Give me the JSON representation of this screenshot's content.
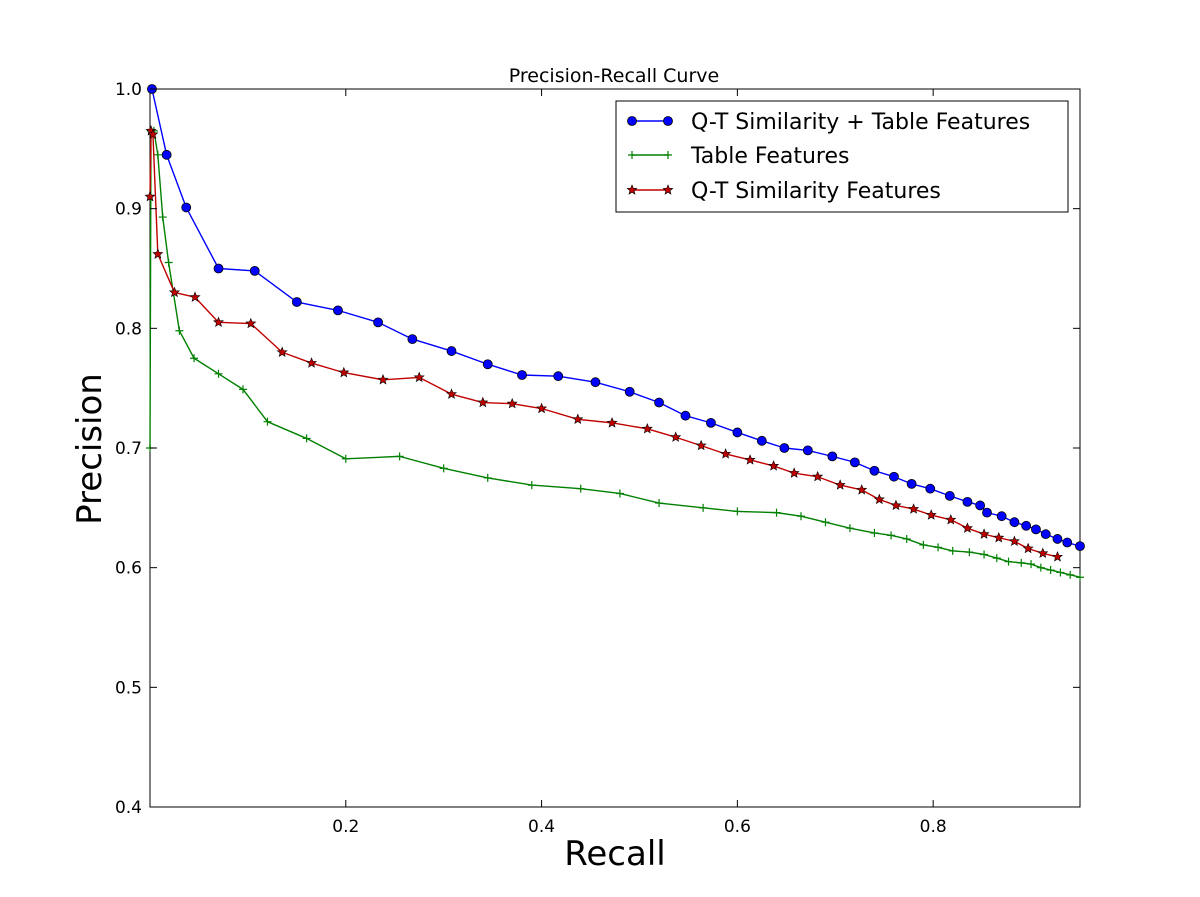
{
  "chart_data": {
    "type": "line",
    "title": "Precision-Recall Curve",
    "xlabel": "Recall",
    "ylabel": "Precision",
    "xlim": [
      0.0,
      0.95
    ],
    "ylim": [
      0.4,
      1.0
    ],
    "xticks": [
      0.2,
      0.4,
      0.6,
      0.8
    ],
    "xtick_labels": [
      "0.2",
      "0.4",
      "0.6",
      "0.8"
    ],
    "yticks": [
      0.4,
      0.5,
      0.6,
      0.7,
      0.8,
      0.9,
      1.0
    ],
    "ytick_labels": [
      "0.4",
      "0.5",
      "0.6",
      "0.7",
      "0.8",
      "0.9",
      "1.0"
    ],
    "grid": false,
    "legend_position": "top-right",
    "series": [
      {
        "name": "Q-T Similarity + Table Features",
        "color": "#0000ff",
        "marker": "circle",
        "x": [
          0.002,
          0.017,
          0.037,
          0.07,
          0.107,
          0.15,
          0.192,
          0.233,
          0.268,
          0.308,
          0.345,
          0.38,
          0.417,
          0.455,
          0.49,
          0.52,
          0.547,
          0.573,
          0.6,
          0.625,
          0.648,
          0.672,
          0.697,
          0.72,
          0.74,
          0.76,
          0.778,
          0.797,
          0.817,
          0.835,
          0.848,
          0.855,
          0.87,
          0.883,
          0.895,
          0.905,
          0.915,
          0.927,
          0.937,
          0.95
        ],
        "y": [
          1.0,
          0.945,
          0.901,
          0.85,
          0.848,
          0.822,
          0.815,
          0.805,
          0.791,
          0.781,
          0.77,
          0.761,
          0.76,
          0.755,
          0.747,
          0.738,
          0.727,
          0.721,
          0.713,
          0.706,
          0.7,
          0.698,
          0.693,
          0.688,
          0.681,
          0.676,
          0.67,
          0.666,
          0.66,
          0.655,
          0.652,
          0.646,
          0.643,
          0.638,
          0.635,
          0.632,
          0.628,
          0.624,
          0.621,
          0.618
        ]
      },
      {
        "name": "Table Features",
        "color": "#008000",
        "marker": "plus",
        "x": [
          0.0,
          0.001,
          0.004,
          0.008,
          0.013,
          0.019,
          0.03,
          0.045,
          0.07,
          0.095,
          0.12,
          0.16,
          0.2,
          0.255,
          0.3,
          0.345,
          0.39,
          0.44,
          0.48,
          0.52,
          0.565,
          0.6,
          0.64,
          0.665,
          0.69,
          0.715,
          0.74,
          0.757,
          0.773,
          0.79,
          0.805,
          0.82,
          0.837,
          0.852,
          0.865,
          0.877,
          0.89,
          0.9,
          0.91,
          0.92,
          0.93,
          0.94,
          0.95
        ],
        "y": [
          0.7,
          0.965,
          0.965,
          0.945,
          0.893,
          0.855,
          0.798,
          0.775,
          0.762,
          0.749,
          0.722,
          0.708,
          0.691,
          0.693,
          0.683,
          0.675,
          0.669,
          0.666,
          0.662,
          0.654,
          0.65,
          0.647,
          0.646,
          0.643,
          0.638,
          0.633,
          0.629,
          0.627,
          0.624,
          0.619,
          0.617,
          0.614,
          0.613,
          0.611,
          0.608,
          0.605,
          0.604,
          0.603,
          0.6,
          0.598,
          0.596,
          0.594,
          0.592
        ]
      },
      {
        "name": "Q-T Similarity Features",
        "color": "#c00000",
        "marker": "star",
        "x": [
          0.0,
          0.001,
          0.003,
          0.008,
          0.025,
          0.046,
          0.07,
          0.103,
          0.135,
          0.165,
          0.198,
          0.238,
          0.275,
          0.308,
          0.34,
          0.37,
          0.4,
          0.437,
          0.472,
          0.508,
          0.537,
          0.563,
          0.588,
          0.613,
          0.637,
          0.658,
          0.682,
          0.705,
          0.727,
          0.745,
          0.762,
          0.78,
          0.798,
          0.818,
          0.835,
          0.852,
          0.867,
          0.883,
          0.897,
          0.912,
          0.927
        ],
        "y": [
          0.91,
          0.965,
          0.962,
          0.862,
          0.83,
          0.826,
          0.805,
          0.804,
          0.78,
          0.771,
          0.763,
          0.757,
          0.759,
          0.745,
          0.738,
          0.737,
          0.733,
          0.724,
          0.721,
          0.716,
          0.709,
          0.702,
          0.695,
          0.69,
          0.685,
          0.679,
          0.676,
          0.669,
          0.665,
          0.657,
          0.652,
          0.649,
          0.644,
          0.64,
          0.633,
          0.628,
          0.625,
          0.622,
          0.616,
          0.612,
          0.609
        ]
      }
    ]
  }
}
